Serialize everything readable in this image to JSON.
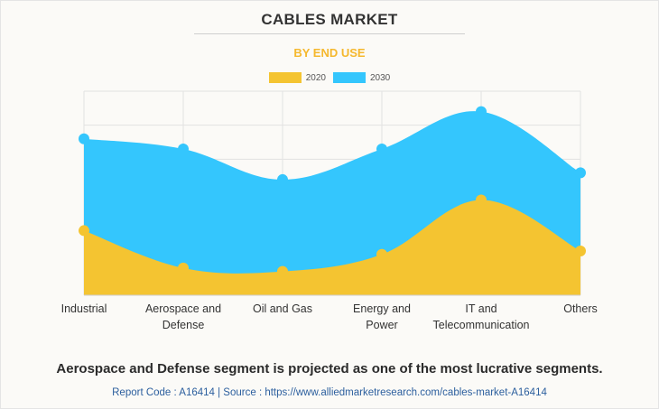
{
  "header": {
    "title": "CABLES MARKET",
    "subtitle": "BY END USE"
  },
  "colors": {
    "series_2020": "#f4c431",
    "series_2030": "#34c6fd",
    "grid": "#e2e2e2",
    "subtitle": "#f5b82e"
  },
  "chart_data": {
    "type": "area",
    "title": "CABLES MARKET",
    "subtitle": "BY END USE",
    "categories": [
      "Industrial",
      "Aerospace and Defense",
      "Oil and Gas",
      "Energy and Power",
      "IT and Telecommunication",
      "Others"
    ],
    "category_lines": [
      [
        "Industrial"
      ],
      [
        "Aerospace and",
        "Defense"
      ],
      [
        "Oil and Gas"
      ],
      [
        "Energy and",
        "Power"
      ],
      [
        "IT and",
        "Telecommunication"
      ],
      [
        "Others"
      ]
    ],
    "series": [
      {
        "name": "2020",
        "values": [
          1.9,
          0.8,
          0.7,
          1.2,
          2.8,
          1.3
        ]
      },
      {
        "name": "2030",
        "values": [
          4.6,
          4.3,
          3.4,
          4.3,
          5.4,
          3.6
        ]
      }
    ],
    "ylim": [
      0,
      6
    ],
    "grid": true,
    "legend_position": "top-center",
    "xlabel": "",
    "ylabel": ""
  },
  "footer": {
    "statement": "Aerospace and Defense segment is projected as one of the most lucrative segments.",
    "source": "Report Code : A16414  |  Source : https://www.alliedmarketresearch.com/cables-market-A16414"
  }
}
